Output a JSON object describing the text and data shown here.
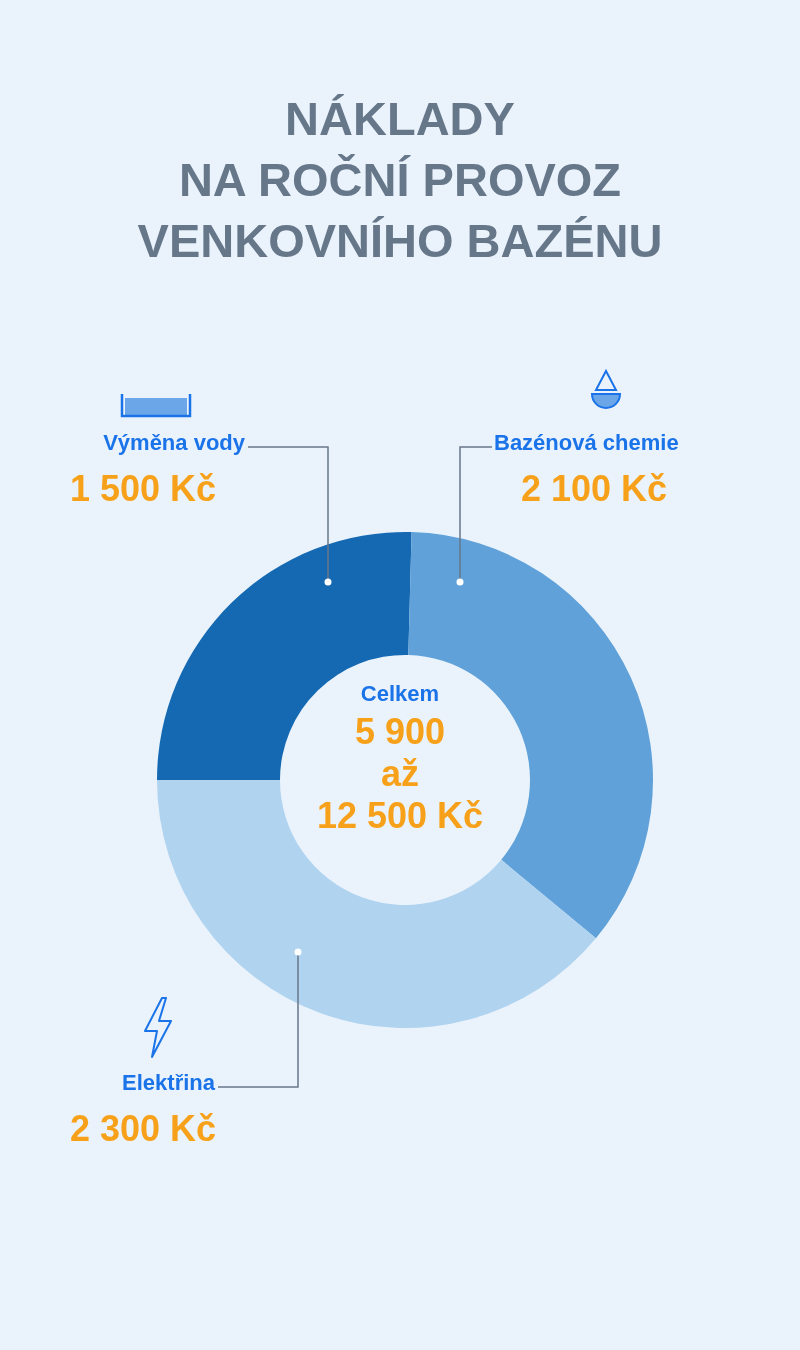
{
  "chart_data": {
    "type": "donut",
    "title": "NÁKLADY\nNA ROČNÍ PROVOZ\nVENKOVNÍHO BAZÉNU",
    "categories": [
      "Výměna vody",
      "Bazénová chemie",
      "Elektřina"
    ],
    "values": [
      1500,
      2100,
      2300
    ],
    "value_labels": [
      "1 500 Kč",
      "2 100 Kč",
      "2 300 Kč"
    ],
    "colors": [
      "#1569b2",
      "#5fa1d8",
      "#b0d3ef"
    ],
    "annotations": [
      "Celkem",
      "5 900",
      "až",
      "12 500 Kč"
    ]
  }
}
